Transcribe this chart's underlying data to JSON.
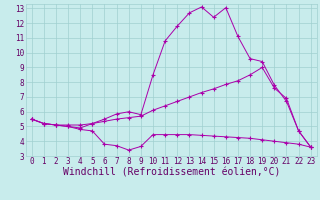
{
  "title": "",
  "xlabel": "Windchill (Refroidissement éolien,°C)",
  "ylabel": "",
  "xlim": [
    -0.5,
    23.5
  ],
  "ylim": [
    3,
    13.3
  ],
  "yticks": [
    3,
    4,
    5,
    6,
    7,
    8,
    9,
    10,
    11,
    12,
    13
  ],
  "xticks": [
    0,
    1,
    2,
    3,
    4,
    5,
    6,
    7,
    8,
    9,
    10,
    11,
    12,
    13,
    14,
    15,
    16,
    17,
    18,
    19,
    20,
    21,
    22,
    23
  ],
  "bg_color": "#c8ecec",
  "grid_color": "#a0d0d0",
  "line_color": "#aa00aa",
  "line1_x": [
    0,
    1,
    2,
    3,
    4,
    5,
    6,
    7,
    8,
    9,
    10,
    11,
    12,
    13,
    14,
    15,
    16,
    17,
    18,
    19,
    20,
    21,
    22,
    23
  ],
  "line1_y": [
    5.5,
    5.2,
    5.1,
    5.0,
    4.8,
    4.7,
    3.8,
    3.7,
    3.4,
    3.65,
    4.45,
    4.45,
    4.45,
    4.45,
    4.4,
    4.35,
    4.3,
    4.25,
    4.2,
    4.1,
    4.0,
    3.9,
    3.8,
    3.6
  ],
  "line2_x": [
    0,
    1,
    2,
    3,
    4,
    5,
    6,
    7,
    8,
    9,
    10,
    11,
    12,
    13,
    14,
    15,
    16,
    17,
    18,
    19,
    20,
    21,
    22,
    23
  ],
  "line2_y": [
    5.5,
    5.2,
    5.1,
    5.1,
    5.1,
    5.2,
    5.35,
    5.5,
    5.6,
    5.7,
    6.1,
    6.4,
    6.7,
    7.0,
    7.3,
    7.55,
    7.85,
    8.1,
    8.5,
    9.0,
    7.6,
    6.9,
    4.7,
    3.6
  ],
  "line3_x": [
    0,
    1,
    2,
    3,
    4,
    5,
    6,
    7,
    8,
    9,
    10,
    11,
    12,
    13,
    14,
    15,
    16,
    17,
    18,
    19,
    20,
    21,
    22,
    23
  ],
  "line3_y": [
    5.5,
    5.2,
    5.1,
    5.0,
    4.9,
    5.2,
    5.5,
    5.85,
    6.0,
    5.8,
    8.5,
    10.8,
    11.8,
    12.7,
    13.1,
    12.4,
    13.05,
    11.1,
    9.6,
    9.4,
    7.8,
    6.7,
    4.7,
    3.6
  ],
  "font_color": "#660066",
  "tick_fontsize": 5.5,
  "xlabel_fontsize": 7.0
}
